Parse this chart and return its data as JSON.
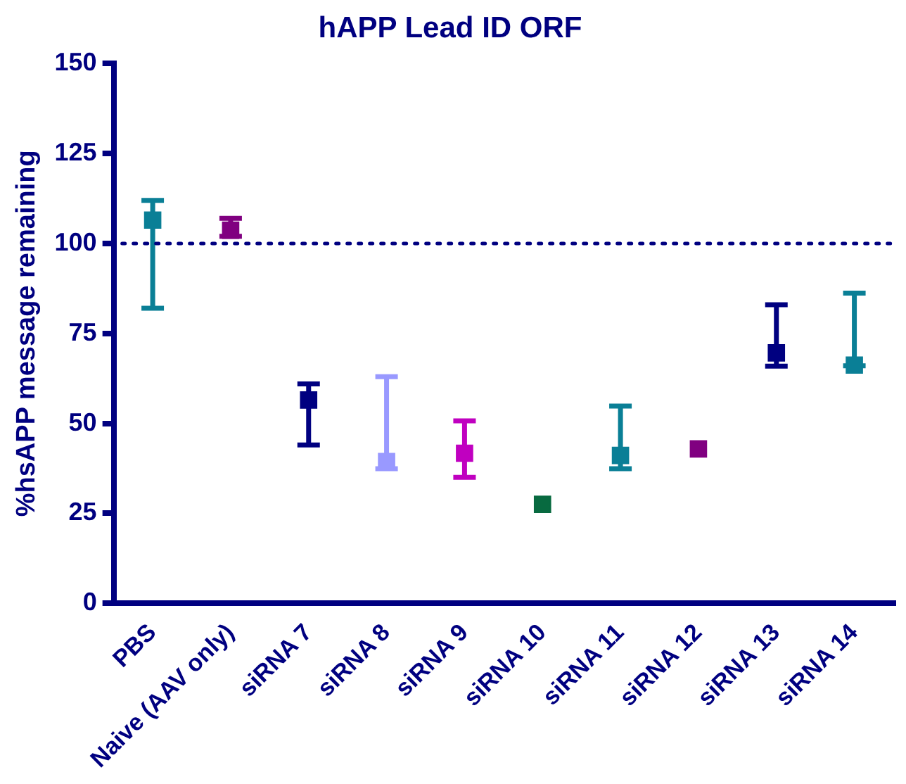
{
  "chart_data": {
    "type": "scatter",
    "title": "hAPP Lead ID ORF",
    "ylabel": "%hsAPP message remaining",
    "categories": [
      "PBS",
      "Naive (AAV only)",
      "siRNA 7",
      "siRNA 8",
      "siRNA 9",
      "siRNA 10",
      "siRNA 11",
      "siRNA 12",
      "siRNA 13",
      "siRNA 14"
    ],
    "values": [
      106.5,
      103.7,
      56.5,
      39.4,
      41.7,
      27.5,
      41.1,
      42.9,
      69.6,
      66.2
    ],
    "errors": [
      [
        82,
        112
      ],
      [
        102,
        107
      ],
      [
        44,
        61
      ],
      [
        37.4,
        63
      ],
      [
        35,
        50.7
      ],
      null,
      [
        37.4,
        54.8
      ],
      null,
      [
        65.9,
        83
      ],
      [
        66,
        86.2
      ]
    ],
    "colors": [
      "#0a7f96",
      "#800080",
      "#000080",
      "#9999ff",
      "#c000c0",
      "#086a40",
      "#0a7f96",
      "#800080",
      "#000080",
      "#0a7f96"
    ],
    "ylim": [
      0,
      150
    ],
    "yticks": [
      0,
      25,
      50,
      75,
      100,
      125,
      150
    ],
    "ref_lines": [
      {
        "axis": "y",
        "value": 100,
        "color": "#000080",
        "line_style": "dotted"
      }
    ],
    "marker": "square",
    "grid": false,
    "legend": false
  }
}
